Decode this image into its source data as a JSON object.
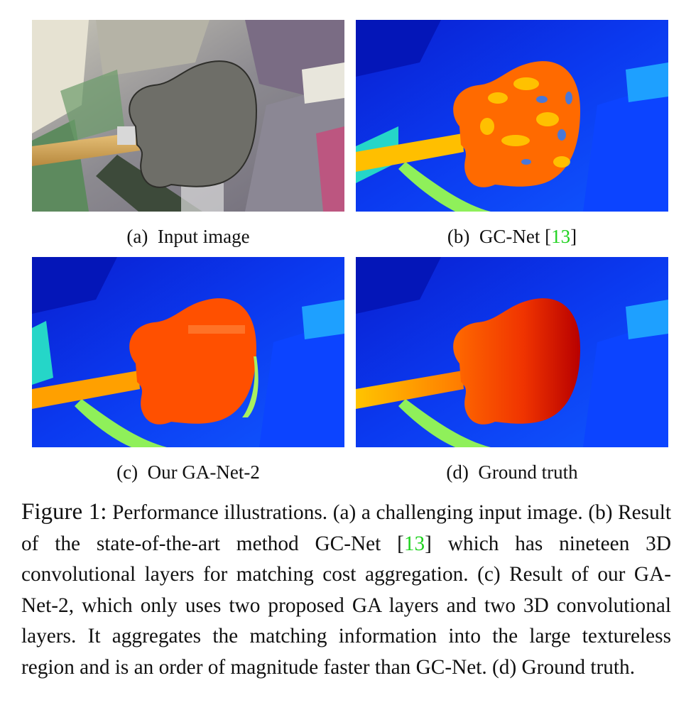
{
  "subfigures": [
    {
      "tag": "(a)",
      "name": "Input image",
      "ref": ""
    },
    {
      "tag": "(b)",
      "name": "GC-Net",
      "ref": "13"
    },
    {
      "tag": "(c)",
      "name": "Our GA-Net-2",
      "ref": ""
    },
    {
      "tag": "(d)",
      "name": "Ground truth",
      "ref": ""
    }
  ],
  "caption": {
    "label": "Figure 1:",
    "part1": " Performance illustrations. (a) a challenging input image. (b) Result of the state-of-the-art method GC-Net ",
    "ref": "13",
    "part2": " which has nineteen 3D convolutional layers for matching cost aggregation. (c) Result of our GA-Net-2, which only uses two proposed GA layers and two 3D convolutional layers. It aggregates the matching information into the large textureless region and is an order of magnitude faster than GC-Net. (d) Ground truth."
  },
  "colors": {
    "citation": "#1fd21f"
  }
}
